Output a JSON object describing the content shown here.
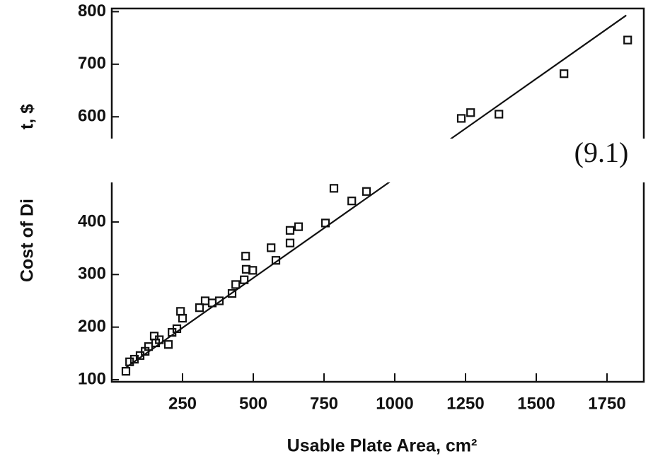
{
  "chart_data": {
    "type": "scatter",
    "y_label_parts": [
      "Cost of Di",
      "t, $"
    ],
    "x_label": "Usable Plate Area, cm²",
    "annotation": "(9.1)",
    "x": [
      50,
      63,
      80,
      100,
      118,
      130,
      150,
      155,
      168,
      200,
      213,
      230,
      243,
      250,
      310,
      330,
      355,
      380,
      425,
      438,
      468,
      475,
      473,
      498,
      563,
      580,
      630,
      630,
      660,
      755,
      785,
      848,
      900,
      1235,
      1268,
      1368,
      1598,
      1823
    ],
    "series": [
      {
        "color": "#111111",
        "values": [
          116,
          134,
          139,
          146,
          154,
          163,
          183,
          170,
          176,
          167,
          190,
          197,
          230,
          217,
          237,
          250,
          246,
          250,
          264,
          281,
          290,
          310,
          335,
          308,
          351,
          327,
          384,
          360,
          391,
          398,
          464,
          440,
          458,
          597,
          608,
          605,
          682,
          746
        ]
      }
    ],
    "fit_line": {
      "x": [
        50,
        1818
      ],
      "y": [
        123,
        793
      ]
    },
    "xlim": [
      0,
      1880
    ],
    "ylim": [
      96,
      806
    ],
    "xticks": [
      250,
      500,
      750,
      1000,
      1250,
      1500,
      1750
    ],
    "yticks": [
      100,
      200,
      300,
      400,
      600,
      700,
      800
    ]
  }
}
